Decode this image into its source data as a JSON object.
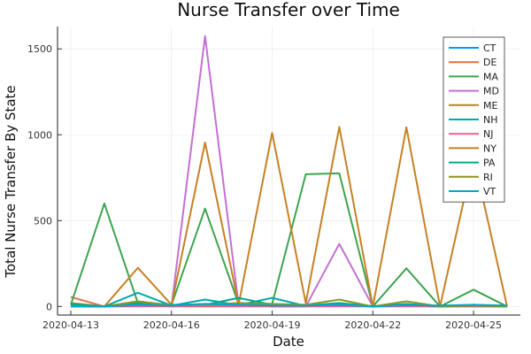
{
  "chart_data": {
    "type": "line",
    "title": "Nurse Transfer over Time",
    "xlabel": "Date",
    "ylabel": "Total Nurse Transfer By State",
    "x": [
      "2020-04-13",
      "2020-04-14",
      "2020-04-15",
      "2020-04-16",
      "2020-04-17",
      "2020-04-18",
      "2020-04-19",
      "2020-04-20",
      "2020-04-21",
      "2020-04-22",
      "2020-04-23",
      "2020-04-24",
      "2020-04-25",
      "2020-04-26"
    ],
    "x_ticks": [
      "2020-04-13",
      "2020-04-16",
      "2020-04-19",
      "2020-04-22",
      "2020-04-25"
    ],
    "y_ticks": [
      0,
      500,
      1000,
      1500
    ],
    "ylim": [
      -50,
      1630
    ],
    "grid": true,
    "legend_position": "top-right",
    "series": [
      {
        "name": "CT",
        "color": "#009AFA",
        "values": [
          5,
          2,
          5,
          3,
          8,
          4,
          6,
          3,
          5,
          2,
          4,
          2,
          3,
          2
        ]
      },
      {
        "name": "DE",
        "color": "#E36F47",
        "values": [
          55,
          0,
          30,
          8,
          15,
          10,
          12,
          5,
          8,
          0,
          10,
          0,
          5,
          0
        ]
      },
      {
        "name": "MA",
        "color": "#3EA44E",
        "values": [
          10,
          600,
          20,
          10,
          570,
          15,
          15,
          770,
          775,
          0,
          222,
          0,
          98,
          0
        ]
      },
      {
        "name": "MD",
        "color": "#C271D2",
        "values": [
          0,
          0,
          10,
          0,
          1575,
          10,
          0,
          0,
          365,
          0,
          10,
          0,
          0,
          0
        ]
      },
      {
        "name": "ME",
        "color": "#AC8D18",
        "values": [
          2,
          0,
          5,
          3,
          5,
          2,
          3,
          2,
          5,
          0,
          3,
          0,
          2,
          0
        ]
      },
      {
        "name": "NH",
        "color": "#00A9AD",
        "values": [
          3,
          0,
          80,
          5,
          40,
          8,
          50,
          3,
          10,
          0,
          10,
          0,
          5,
          0
        ]
      },
      {
        "name": "NJ",
        "color": "#ED5E93",
        "values": [
          0,
          0,
          0,
          0,
          0,
          0,
          0,
          0,
          0,
          0,
          0,
          0,
          0,
          0
        ]
      },
      {
        "name": "NY",
        "color": "#C68125",
        "values": [
          20,
          0,
          225,
          10,
          955,
          10,
          1010,
          20,
          1045,
          0,
          1043,
          0,
          870,
          0
        ]
      },
      {
        "name": "PA",
        "color": "#00A98E",
        "values": [
          15,
          0,
          20,
          10,
          10,
          50,
          10,
          5,
          20,
          0,
          15,
          0,
          10,
          0
        ]
      },
      {
        "name": "RI",
        "color": "#8E971E",
        "values": [
          3,
          0,
          30,
          5,
          10,
          20,
          15,
          10,
          40,
          0,
          30,
          0,
          5,
          0
        ]
      },
      {
        "name": "VT",
        "color": "#00A8CB",
        "values": [
          0,
          0,
          10,
          5,
          15,
          10,
          5,
          5,
          10,
          0,
          8,
          5,
          10,
          5
        ]
      }
    ]
  }
}
